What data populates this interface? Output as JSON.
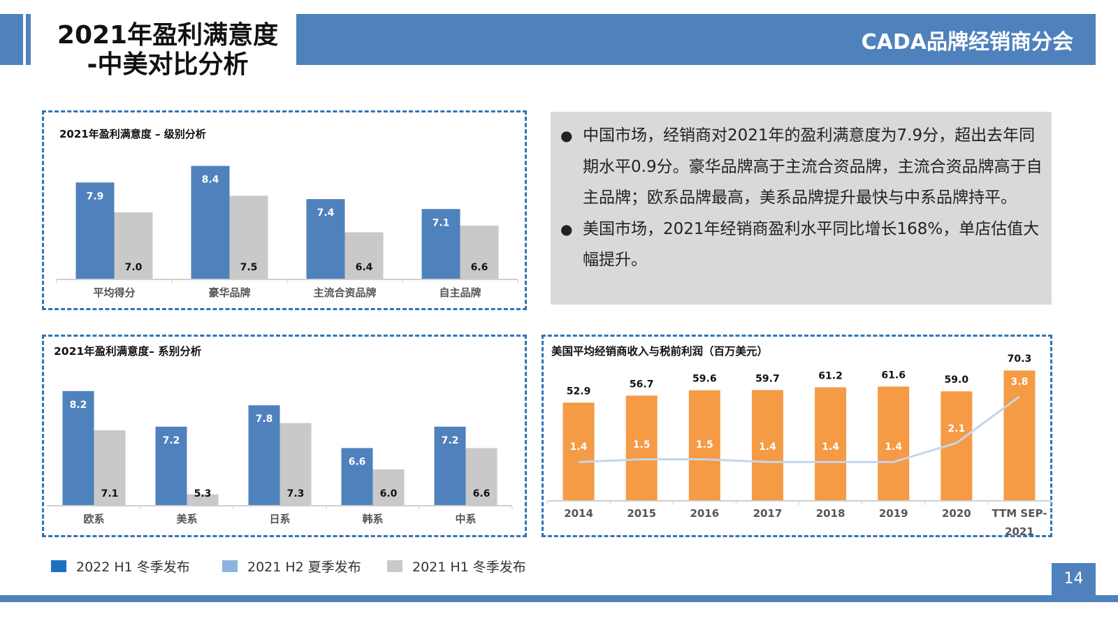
{
  "header": {
    "title_line1": "2021年盈利满意度",
    "title_line2": "-中美对比分析",
    "brand": "CADA品牌经销商分会",
    "accent": "#4f81bd"
  },
  "summary": {
    "bullets": [
      "中国市场，经销商对2021年的盈利满意度为7.9分，超出去年同期水平0.9分。豪华品牌高于主流合资品牌，主流合资品牌高于自主品牌；欧系品牌最高，美系品牌提升最快与中系品牌持平。",
      "美国市场，2021年经销商盈利水平同比增长168%，单店估值大幅提升。"
    ]
  },
  "legend": [
    {
      "label": "2022 H1 冬季发布",
      "color": "#1f6fc0"
    },
    {
      "label": "2021 H2 夏季发布",
      "color": "#8db3e2"
    },
    {
      "label": "2021 H1 冬季发布",
      "color": "#c9c9c9"
    }
  ],
  "page_number": "14",
  "chart_data": [
    {
      "type": "bar",
      "title": "2021年盈利满意度 – 级别分析",
      "categories": [
        "平均得分",
        "豪华品牌",
        "主流合资品牌",
        "自主品牌"
      ],
      "series": [
        {
          "values": [
            7.9,
            8.4,
            7.4,
            7.1
          ],
          "color": "#4f81bd"
        },
        {
          "values": [
            7.0,
            7.5,
            6.4,
            6.6
          ],
          "color": "#c9c9c9"
        }
      ],
      "ylim": [
        5,
        9
      ],
      "grid": false
    },
    {
      "type": "bar",
      "title": "2021年盈利满意度– 系别分析",
      "categories": [
        "欧系",
        "美系",
        "日系",
        "韩系",
        "中系"
      ],
      "series": [
        {
          "values": [
            8.2,
            7.2,
            7.8,
            6.6,
            7.2
          ],
          "color": "#4f81bd"
        },
        {
          "values": [
            7.1,
            5.3,
            7.3,
            6.0,
            6.6
          ],
          "color": "#c9c9c9"
        }
      ],
      "ylim": [
        5,
        9
      ],
      "grid": false
    },
    {
      "type": "bar+line",
      "title": "美国平均经销商收入与税前利润（百万美元）",
      "categories": [
        "2014",
        "2015",
        "2016",
        "2017",
        "2018",
        "2019",
        "2020",
        "TTM SEP-2021"
      ],
      "series": [
        {
          "type": "bar",
          "values": [
            52.9,
            56.7,
            59.6,
            59.7,
            61.2,
            61.6,
            59.0,
            70.3
          ],
          "color": "#f59a45"
        },
        {
          "type": "line",
          "values": [
            1.4,
            1.5,
            1.5,
            1.4,
            1.4,
            1.4,
            2.1,
            3.8
          ],
          "color": "#c5d6ec"
        }
      ],
      "ylim": [
        0,
        80
      ],
      "y2lim": [
        0,
        5
      ],
      "grid": false
    }
  ]
}
